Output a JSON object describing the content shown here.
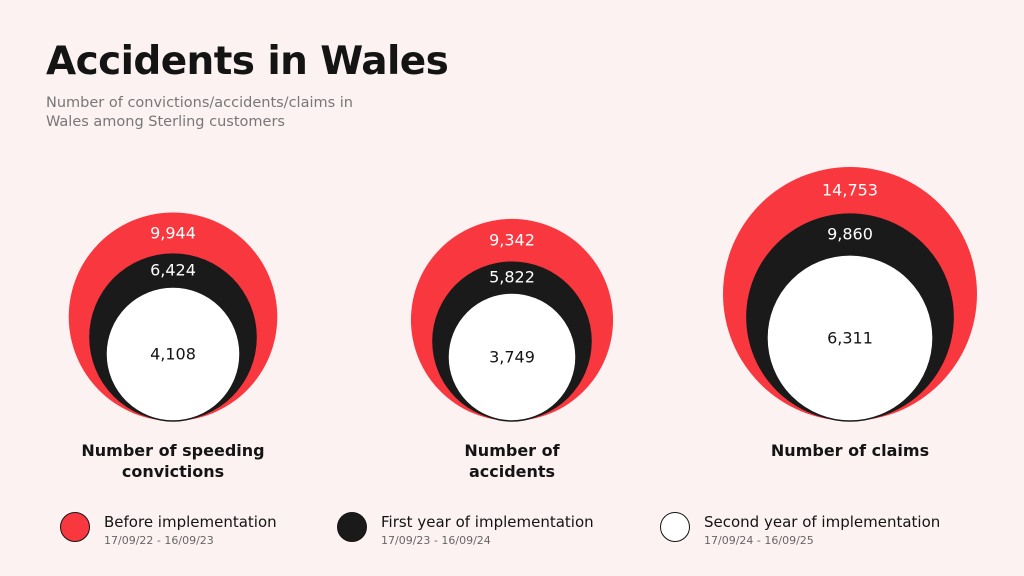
{
  "title": "Accidents in Wales",
  "subtitle": "Number of convictions/accidents/claims in Wales among Sterling customers",
  "colors": {
    "background": "#fdf2f2",
    "before": "#f9373f",
    "first_year": "#1a1a1a",
    "second_year": "#ffffff"
  },
  "chart_data": [
    {
      "type": "nested-circle",
      "label": "Number of speeding convictions",
      "series": [
        {
          "name": "Before implementation",
          "value": 9944,
          "display": "9,944"
        },
        {
          "name": "First year of implementation",
          "value": 6424,
          "display": "6,424"
        },
        {
          "name": "Second year of implementation",
          "value": 4108,
          "display": "4,108"
        }
      ]
    },
    {
      "type": "nested-circle",
      "label": "Number of accidents",
      "series": [
        {
          "name": "Before implementation",
          "value": 9342,
          "display": "9,342"
        },
        {
          "name": "First year of implementation",
          "value": 5822,
          "display": "5,822"
        },
        {
          "name": "Second year of implementation",
          "value": 3749,
          "display": "3,749"
        }
      ]
    },
    {
      "type": "nested-circle",
      "label": "Number of claims",
      "series": [
        {
          "name": "Before implementation",
          "value": 14753,
          "display": "14,753"
        },
        {
          "name": "First year of implementation",
          "value": 9860,
          "display": "9,860"
        },
        {
          "name": "Second year of implementation",
          "value": 6311,
          "display": "6,311"
        }
      ]
    }
  ],
  "legend": [
    {
      "label": "Before implementation",
      "dates": "17/09/22 - 16/09/23",
      "color": "#f9373f"
    },
    {
      "label": "First year of implementation",
      "dates": "17/09/23 - 16/09/24",
      "color": "#1a1a1a"
    },
    {
      "label": "Second year of implementation",
      "dates": "17/09/24 - 16/09/25",
      "color": "#ffffff"
    }
  ]
}
